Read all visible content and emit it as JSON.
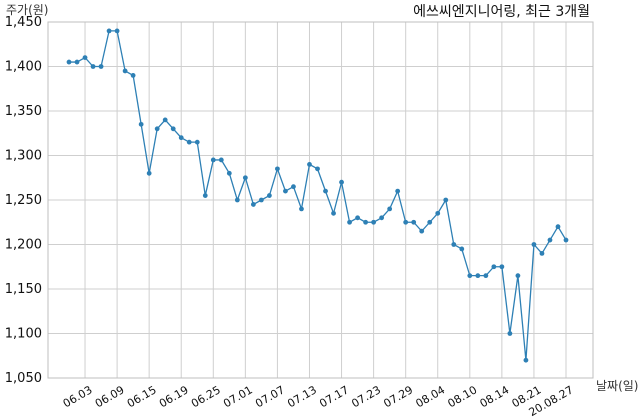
{
  "chart_data": {
    "type": "line",
    "title": "에쓰씨엔지니어링, 최근 3개월",
    "ylabel": "주가(원)",
    "xlabel": "날짜(일)",
    "ylim": [
      1050,
      1450
    ],
    "yticks": [
      1050,
      1100,
      1150,
      1200,
      1250,
      1300,
      1350,
      1400,
      1450
    ],
    "ytick_labels": [
      "1,050",
      "1,100",
      "1,150",
      "1,200",
      "1,250",
      "1,300",
      "1,350",
      "1,400",
      "1,450"
    ],
    "xtick_labels": [
      "06.03",
      "06.09",
      "06.15",
      "06.19",
      "06.25",
      "07.01",
      "07.07",
      "07.13",
      "07.17",
      "07.23",
      "07.29",
      "08.04",
      "08.10",
      "08.14",
      "08.21",
      "20.08.27"
    ],
    "xtick_indices": [
      2,
      6,
      10,
      14,
      18,
      22,
      26,
      30,
      34,
      38,
      42,
      46,
      50,
      54,
      58,
      62
    ],
    "grid": true,
    "series": [
      {
        "values": [
          1405,
          1405,
          1410,
          1400,
          1400,
          1440,
          1440,
          1395,
          1390,
          1335,
          1280,
          1330,
          1340,
          1330,
          1320,
          1315,
          1315,
          1255,
          1295,
          1295,
          1280,
          1250,
          1275,
          1245,
          1250,
          1255,
          1285,
          1260,
          1265,
          1240,
          1290,
          1285,
          1260,
          1235,
          1270,
          1225,
          1230,
          1225,
          1225,
          1230,
          1240,
          1260,
          1225,
          1225,
          1215,
          1225,
          1235,
          1250,
          1200,
          1195,
          1165,
          1165,
          1165,
          1175,
          1175,
          1100,
          1165,
          1070,
          1200,
          1190,
          1205,
          1220,
          1205
        ]
      }
    ]
  },
  "colors": {
    "line": "#2e80b5",
    "grid": "#cfcfcf"
  }
}
